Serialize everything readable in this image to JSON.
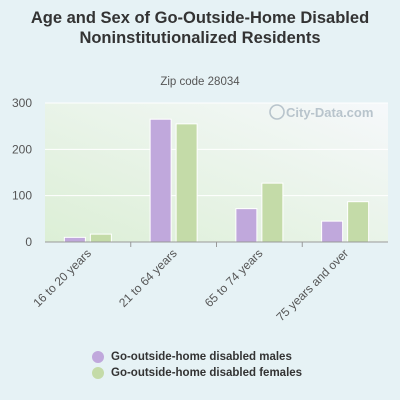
{
  "chart_data": {
    "type": "bar",
    "title": "Age and Sex of Go-Outside-Home Disabled Noninstitutionalized Residents",
    "subtitle": "Zip code 28034",
    "categories": [
      "16 to 20 years",
      "21 to 64 years",
      "65 to 74 years",
      "75 years and over"
    ],
    "series": [
      {
        "name": "Go-outside-home disabled males",
        "color": "#c0a8dc",
        "values": [
          10,
          265,
          72,
          45
        ]
      },
      {
        "name": "Go-outside-home disabled females",
        "color": "#c4dba8",
        "values": [
          17,
          255,
          127,
          87
        ]
      }
    ],
    "ylim": [
      0,
      300
    ],
    "yticks": [
      0,
      100,
      200,
      300
    ],
    "grid": true,
    "legend_position": "bottom"
  },
  "watermark": "City-Data.com"
}
